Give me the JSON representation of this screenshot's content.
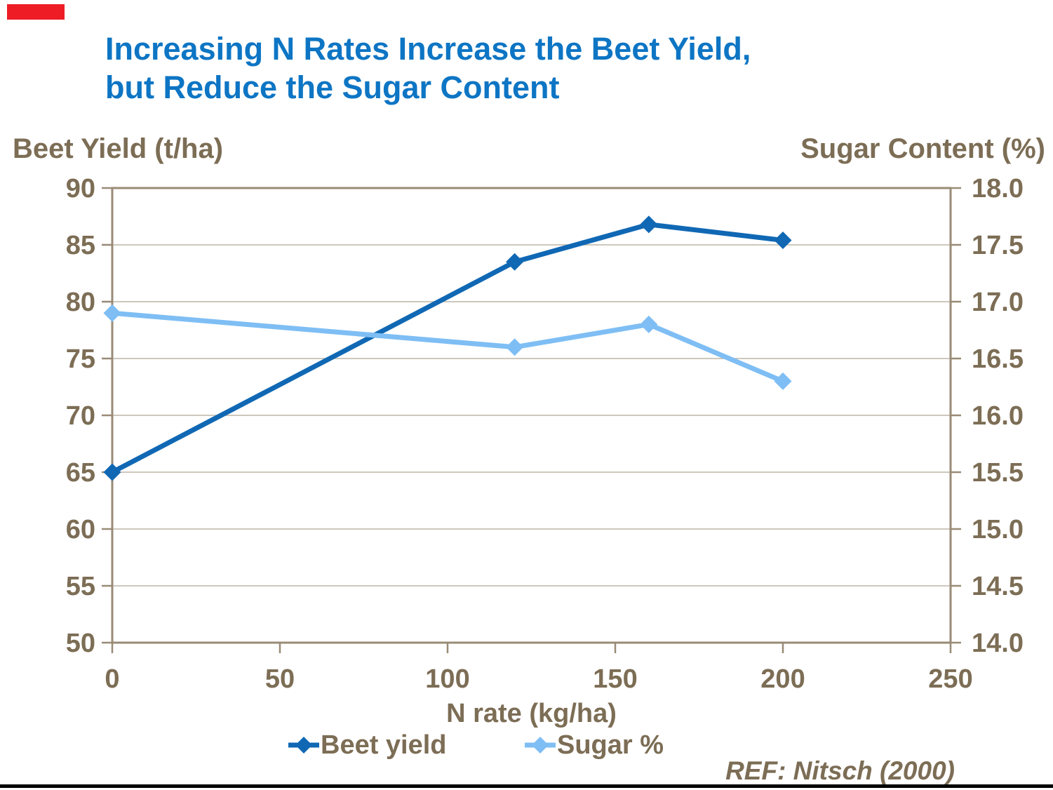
{
  "page": {
    "title_line1": "Increasing N Rates Increase the Beet Yield,",
    "title_line2": "but Reduce the Sugar Content",
    "ref_note": "REF: Nitsch (2000)"
  },
  "chart_data": {
    "type": "line",
    "title": "Increasing N Rates Increase the Beet Yield, but Reduce the Sugar Content",
    "x": [
      0,
      120,
      160,
      200
    ],
    "xlabel": "N rate (kg/ha)",
    "xlim": [
      0,
      250
    ],
    "x_ticks": [
      "0",
      "50",
      "100",
      "150",
      "200",
      "250"
    ],
    "grid": "horizontal",
    "legend_position": "bottom",
    "left_axis": {
      "label": "Beet Yield (t/ha)",
      "lim": [
        50,
        90
      ],
      "ticks": [
        "90",
        "85",
        "80",
        "75",
        "70",
        "65",
        "60",
        "55",
        "50"
      ]
    },
    "right_axis": {
      "label": "Sugar Content (%)",
      "lim": [
        14.0,
        18.0
      ],
      "ticks": [
        "18.0",
        "17.5",
        "17.0",
        "16.5",
        "16.0",
        "15.5",
        "15.0",
        "14.5",
        "14.0"
      ]
    },
    "series": [
      {
        "name": "Beet yield",
        "axis": "left",
        "values": [
          65,
          83.5,
          86.8,
          85.4
        ],
        "color": "#1068B4"
      },
      {
        "name": "Sugar %",
        "axis": "right",
        "values": [
          16.9,
          16.6,
          16.8,
          16.3
        ],
        "color": "#7EBEF4"
      }
    ]
  },
  "colors": {
    "title_blue": "#0D75C4",
    "beet_line": "#1068B4",
    "sugar_line": "#7EBEF4",
    "label_brown": "#7C6D55",
    "axis_line": "#998B76",
    "gridline": "#BDB5A6",
    "red_mark": "#EE1C25",
    "bottom_rule": "#000000"
  }
}
